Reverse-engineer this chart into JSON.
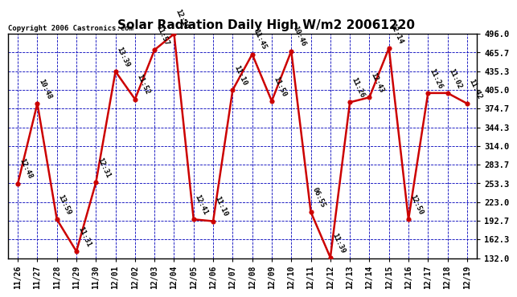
{
  "title": "Solar Radiation Daily High W/m2 20061220",
  "copyright": "Copyright 2006 Castronics.com",
  "dates": [
    "11/26",
    "11/27",
    "11/28",
    "11/29",
    "11/30",
    "12/01",
    "12/02",
    "12/03",
    "12/04",
    "12/05",
    "12/06",
    "12/07",
    "12/08",
    "12/09",
    "12/10",
    "12/11",
    "12/12",
    "12/13",
    "12/14",
    "12/15",
    "12/16",
    "12/17",
    "12/18",
    "12/19"
  ],
  "values": [
    253.0,
    383.0,
    195.0,
    143.0,
    255.0,
    435.0,
    390.0,
    470.0,
    496.0,
    195.0,
    192.0,
    405.0,
    463.0,
    387.0,
    468.0,
    207.0,
    133.0,
    385.0,
    393.0,
    473.0,
    195.0,
    400.0,
    400.0,
    383.0
  ],
  "times": [
    "12:48",
    "10:48",
    "13:59",
    "11:31",
    "12:31",
    "13:39",
    "11:52",
    "11:57",
    "12:19",
    "12:41",
    "11:10",
    "11:10",
    "11:45",
    "11:50",
    "10:46",
    "06:55",
    "11:39",
    "11:26",
    "12:43",
    "12:14",
    "12:50",
    "11:26",
    "11:02",
    "11:42"
  ],
  "ymin": 132.0,
  "ymax": 496.0,
  "yticks": [
    132.0,
    162.3,
    192.7,
    223.0,
    253.3,
    283.7,
    314.0,
    344.3,
    374.7,
    405.0,
    435.3,
    465.7,
    496.0
  ],
  "line_color": "#cc0000",
  "marker_color": "#cc0000",
  "bg_color": "#ffffff",
  "grid_color": "#0000bb",
  "text_color": "#000000",
  "title_fontsize": 11,
  "annotation_fontsize": 6.5,
  "copyright_fontsize": 6.5,
  "tick_fontsize": 7.5,
  "xtick_fontsize": 7.0
}
